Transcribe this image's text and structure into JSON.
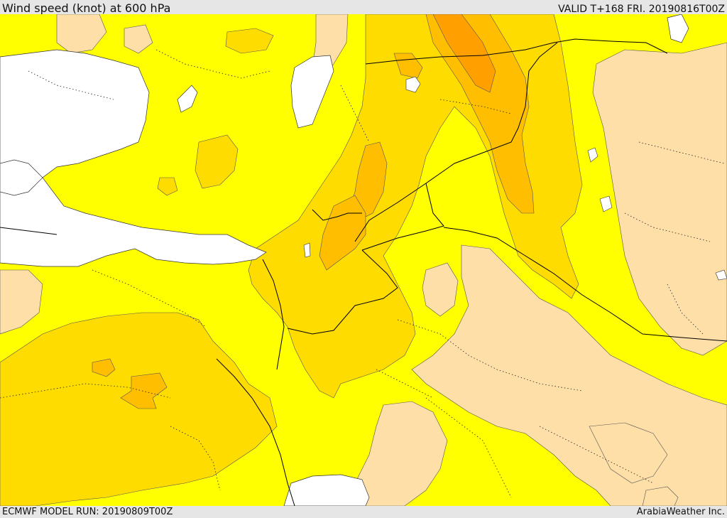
{
  "header": {
    "title": "Wind speed (knot) at 600 hPa",
    "valid": "VALID T+168 FRI. 20190816T00Z"
  },
  "footer": {
    "model_run": "ECMWF MODEL RUN: 20190809T00Z",
    "credit": "ArabiaWeather Inc."
  },
  "map": {
    "colors": {
      "sea": "#ffffff",
      "low_wind": "#ffdfa8",
      "moderate_wind": "#ffff00",
      "high_wind": "#ffdc00",
      "strong_wind": "#ffbf00",
      "strongest_wind": "#ffa000",
      "borders": "#000000"
    }
  }
}
